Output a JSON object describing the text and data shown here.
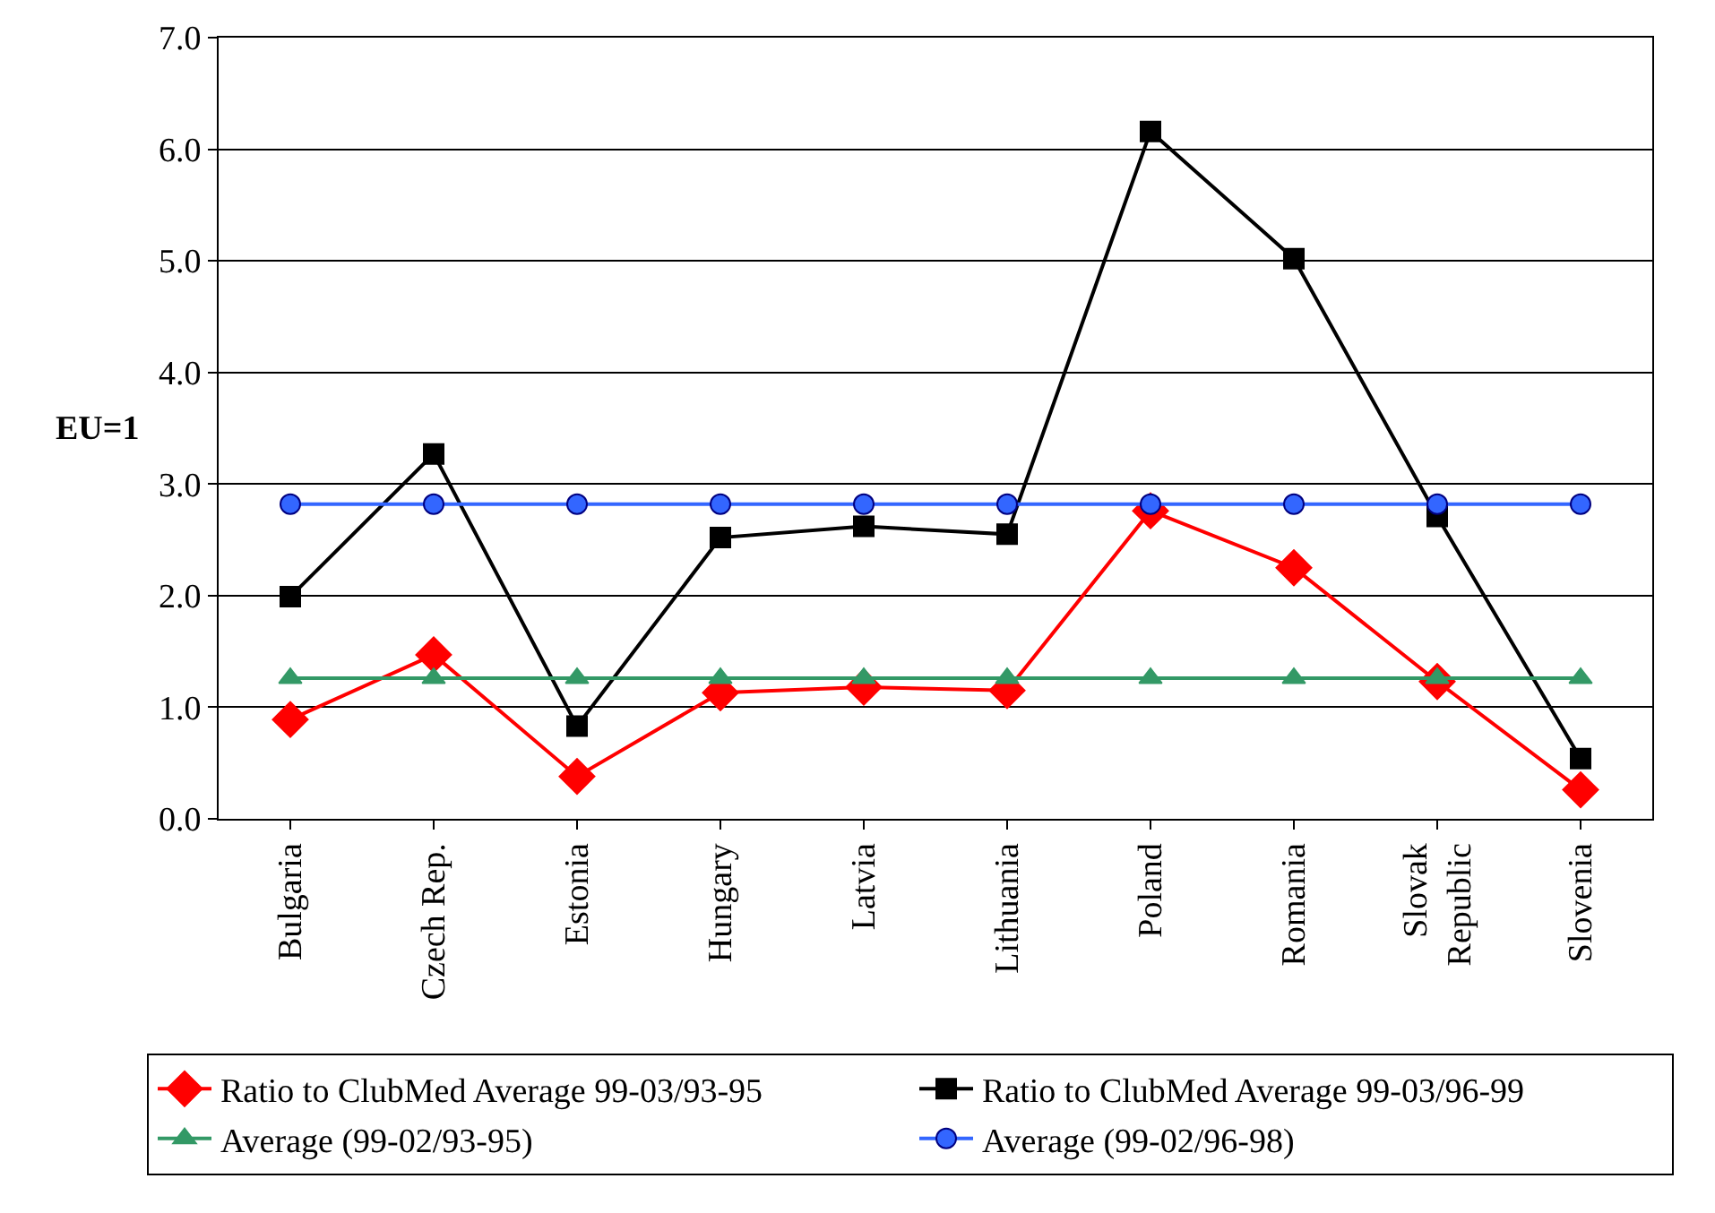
{
  "chart_data": {
    "type": "line",
    "ylabel": "EU=1",
    "categories": [
      "Bulgaria",
      "Czech Rep.",
      "Estonia",
      "Hungary",
      "Latvia",
      "Lithuania",
      "Poland",
      "Romania",
      "Slovak\nRepublic",
      "Slovenia"
    ],
    "series": [
      {
        "name": "Ratio to ClubMed Average 99-03/93-95",
        "color": "#ff0000",
        "marker": "diamond",
        "values": [
          0.89,
          1.47,
          0.38,
          1.13,
          1.18,
          1.15,
          2.76,
          2.25,
          1.23,
          0.26
        ]
      },
      {
        "name": "Ratio to ClubMed Average 99-03/96-99",
        "color": "#000000",
        "marker": "square",
        "values": [
          1.99,
          3.27,
          0.83,
          2.52,
          2.62,
          2.55,
          6.16,
          5.02,
          2.71,
          0.54
        ]
      },
      {
        "name": "Average (99-02/93-95)",
        "color": "#339966",
        "marker": "triangle",
        "values": [
          1.26,
          1.26,
          1.26,
          1.26,
          1.26,
          1.26,
          1.26,
          1.26,
          1.26,
          1.26
        ]
      },
      {
        "name": "Average (99-02/96-98)",
        "color": "#3366ff",
        "marker": "circle",
        "values": [
          2.82,
          2.82,
          2.82,
          2.82,
          2.82,
          2.82,
          2.82,
          2.82,
          2.82,
          2.82
        ]
      }
    ],
    "ylim": [
      0,
      7
    ],
    "yticks": [
      {
        "value": 0,
        "label": "0.0"
      },
      {
        "value": 1,
        "label": "1.0"
      },
      {
        "value": 2,
        "label": "2.0"
      },
      {
        "value": 3,
        "label": "3.0"
      },
      {
        "value": 4,
        "label": "4.0"
      },
      {
        "value": 5,
        "label": "5.0"
      },
      {
        "value": 6,
        "label": "6.0"
      },
      {
        "value": 7,
        "label": "7.0"
      }
    ],
    "grid": "y",
    "legend": "bottom"
  }
}
